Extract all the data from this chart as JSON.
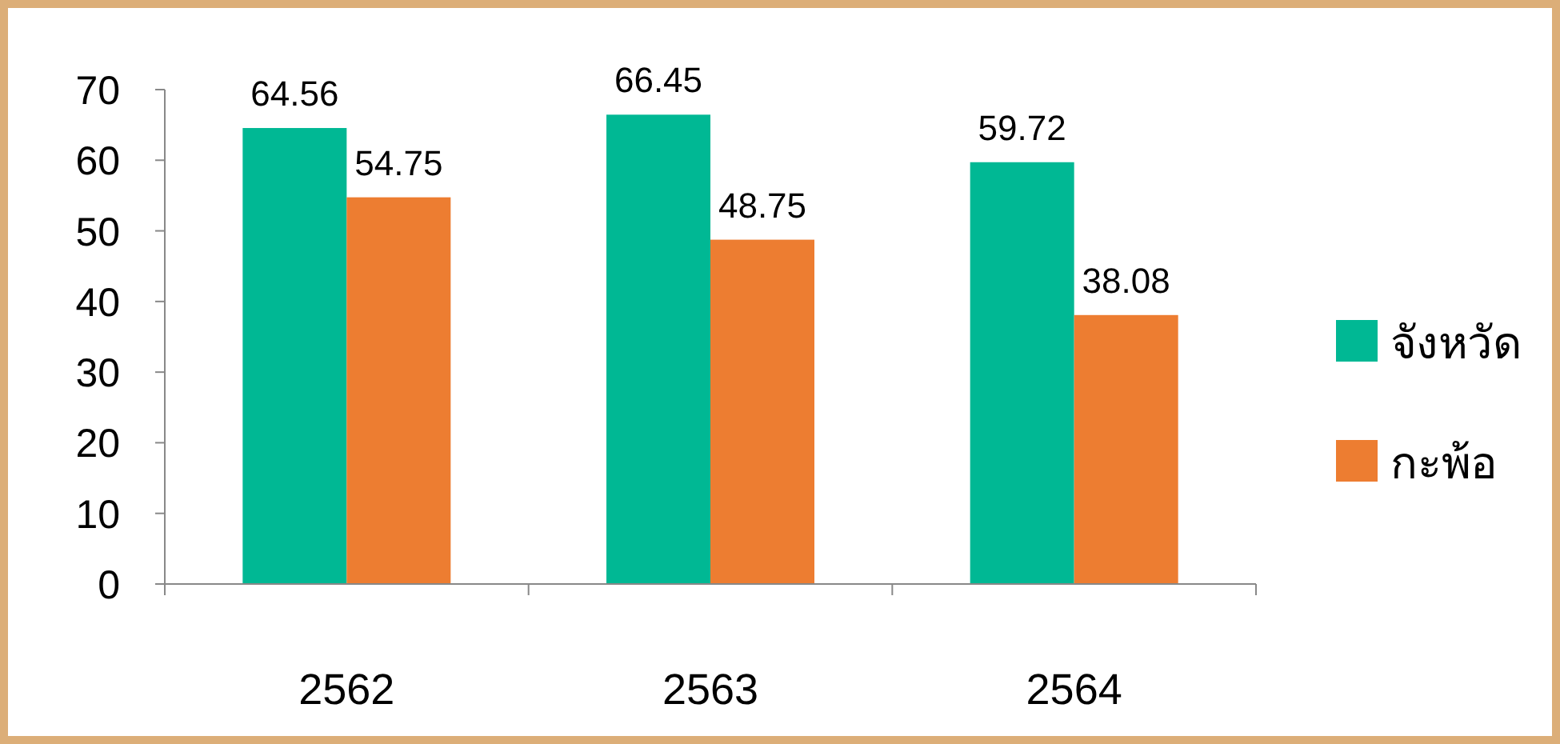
{
  "chart_data": {
    "type": "bar",
    "categories": [
      "2562",
      "2563",
      "2564"
    ],
    "series": [
      {
        "name": "จังหวัด",
        "color": "#00b894",
        "values": [
          64.56,
          66.45,
          59.72
        ]
      },
      {
        "name": "กะพ้อ",
        "color": "#ed7d31",
        "values": [
          54.75,
          48.75,
          38.08
        ]
      }
    ],
    "ylim": [
      0,
      70
    ],
    "yticks": [
      0,
      10,
      20,
      30,
      40,
      50,
      60,
      70
    ],
    "data_labels": true,
    "legend": "right",
    "grid": false
  }
}
